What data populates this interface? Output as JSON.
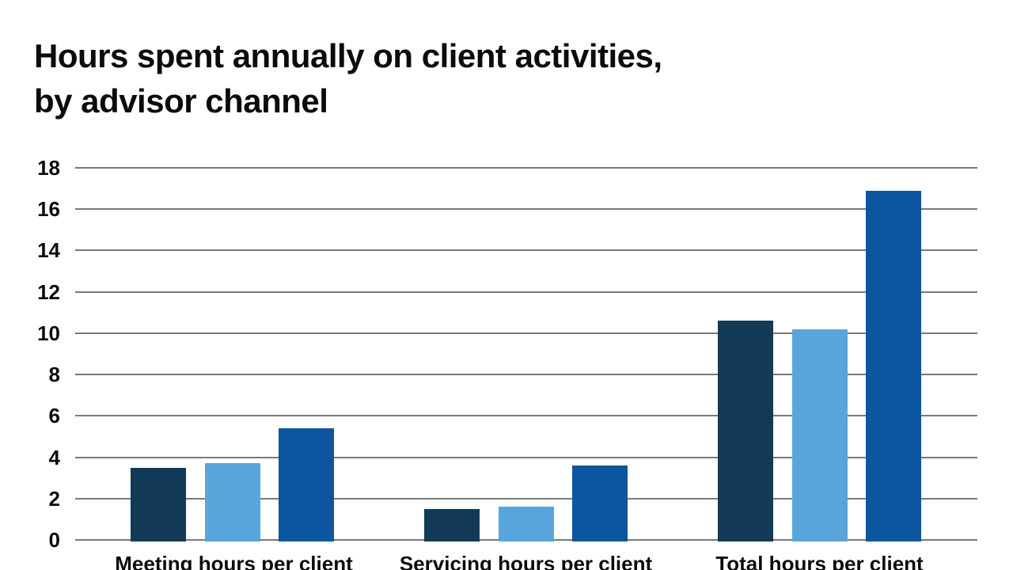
{
  "title": {
    "line1": "Hours spent annually on client activities,",
    "line2": "by advisor channel"
  },
  "colors": {
    "dark_navy": "#123A57",
    "light_blue": "#59A5DB",
    "medium_blue": "#0B569E",
    "gridline": "#7A7A7A",
    "text": "#0B0B0B",
    "background": "#FFFFFF"
  },
  "chart_data": {
    "type": "bar",
    "title": "Hours spent annually on client activities, by advisor channel",
    "categories": [
      "Meeting hours per client",
      "Servicing hours per client",
      "Total hours per client"
    ],
    "series": [
      {
        "name": "dark_navy_series",
        "color": "#123A57",
        "values": [
          3.5,
          1.5,
          10.6
        ]
      },
      {
        "name": "light_blue_series",
        "color": "#59A5DB",
        "values": [
          3.7,
          1.6,
          10.2
        ]
      },
      {
        "name": "medium_blue_series",
        "color": "#0B569E",
        "values": [
          5.4,
          3.6,
          16.9
        ]
      }
    ],
    "xlabel": "",
    "ylabel": "",
    "ylim": [
      0,
      18
    ],
    "y_ticks": [
      0,
      2,
      4,
      6,
      8,
      10,
      12,
      14,
      16,
      18
    ],
    "grid": true,
    "legend_position": "none"
  }
}
